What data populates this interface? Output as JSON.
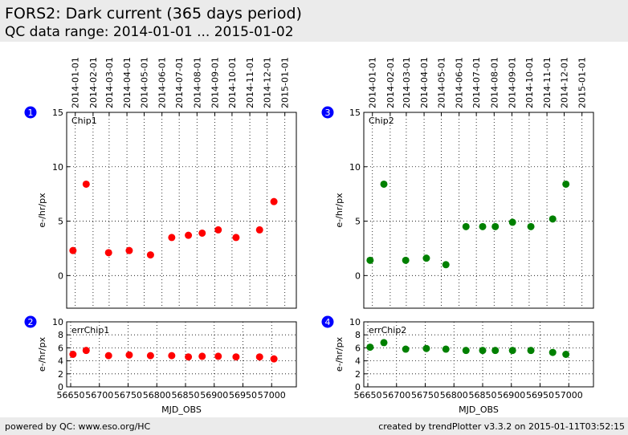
{
  "header": {
    "title": "FORS2: Dark current (365 days period)",
    "subtitle": "QC data range: 2014-01-01 ... 2015-01-02"
  },
  "footer": {
    "left": "powered by QC: www.eso.org/HC",
    "right": "created by trendPlotter v3.3.2 on 2015-01-11T03:52:15"
  },
  "colors": {
    "chip1": "#ff0000",
    "chip2": "#008000",
    "badge": "#0000ff",
    "header_bg": "#ebebeb"
  },
  "chart_data": [
    {
      "panel": "1",
      "type": "scatter",
      "label": "Chip1",
      "ylabel": "e-/hr/px",
      "ylim": [
        -3,
        15
      ],
      "yticks": [
        0,
        5,
        10,
        15
      ],
      "xlim": [
        56643,
        57043
      ],
      "top_date_ticks": [
        "2014-01-01",
        "2014-02-01",
        "2014-03-01",
        "2014-04-01",
        "2014-05-01",
        "2014-06-01",
        "2014-07-01",
        "2014-08-01",
        "2014-09-01",
        "2014-10-01",
        "2014-11-01",
        "2014-12-01",
        "2015-01-01"
      ],
      "grid": true,
      "x": [
        56654,
        56677,
        56716,
        56752,
        56789,
        56826,
        56855,
        56879,
        56907,
        56938,
        56979,
        57004
      ],
      "y": [
        2.3,
        8.4,
        2.1,
        2.3,
        1.9,
        3.5,
        3.7,
        3.9,
        4.2,
        3.5,
        4.2,
        6.8
      ]
    },
    {
      "panel": "2",
      "type": "scatter",
      "label": "errChip1",
      "ylabel": "e-/hr/px",
      "xlabel": "MJD_OBS",
      "ylim": [
        0,
        10
      ],
      "yticks": [
        0,
        2,
        4,
        6,
        8,
        10
      ],
      "xlim": [
        56643,
        57043
      ],
      "xticks": [
        56650,
        56700,
        56750,
        56800,
        56850,
        56900,
        56950,
        57000
      ],
      "grid": true,
      "x": [
        56654,
        56677,
        56716,
        56752,
        56789,
        56826,
        56855,
        56879,
        56907,
        56938,
        56979,
        57004
      ],
      "y": [
        5.0,
        5.6,
        4.8,
        4.9,
        4.8,
        4.8,
        4.6,
        4.7,
        4.7,
        4.6,
        4.6,
        4.3
      ]
    },
    {
      "panel": "3",
      "type": "scatter",
      "label": "Chip2",
      "ylabel": "e-/hr/px",
      "ylim": [
        -3,
        15
      ],
      "yticks": [
        0,
        5,
        10,
        15
      ],
      "xlim": [
        56643,
        57043
      ],
      "top_date_ticks": [
        "2014-01-01",
        "2014-02-01",
        "2014-03-01",
        "2014-04-01",
        "2014-05-01",
        "2014-06-01",
        "2014-07-01",
        "2014-08-01",
        "2014-09-01",
        "2014-10-01",
        "2014-11-01",
        "2014-12-01",
        "2015-01-01"
      ],
      "grid": true,
      "x": [
        56654,
        56678,
        56716,
        56752,
        56786,
        56821,
        56850,
        56872,
        56902,
        56934,
        56972,
        56995
      ],
      "y": [
        1.4,
        8.4,
        1.4,
        1.6,
        1.0,
        4.5,
        4.5,
        4.5,
        4.9,
        4.5,
        5.2,
        8.4
      ]
    },
    {
      "panel": "4",
      "type": "scatter",
      "label": "errChip2",
      "ylabel": "e-/hr/px",
      "xlabel": "MJD_OBS",
      "ylim": [
        0,
        10
      ],
      "yticks": [
        0,
        2,
        4,
        6,
        8,
        10
      ],
      "xlim": [
        56643,
        57043
      ],
      "xticks": [
        56650,
        56700,
        56750,
        56800,
        56850,
        56900,
        56950,
        57000
      ],
      "grid": true,
      "x": [
        56654,
        56678,
        56716,
        56752,
        56786,
        56821,
        56850,
        56872,
        56902,
        56934,
        56972,
        56995
      ],
      "y": [
        6.1,
        6.8,
        5.8,
        5.9,
        5.8,
        5.6,
        5.6,
        5.6,
        5.6,
        5.6,
        5.3,
        5.0
      ]
    }
  ]
}
